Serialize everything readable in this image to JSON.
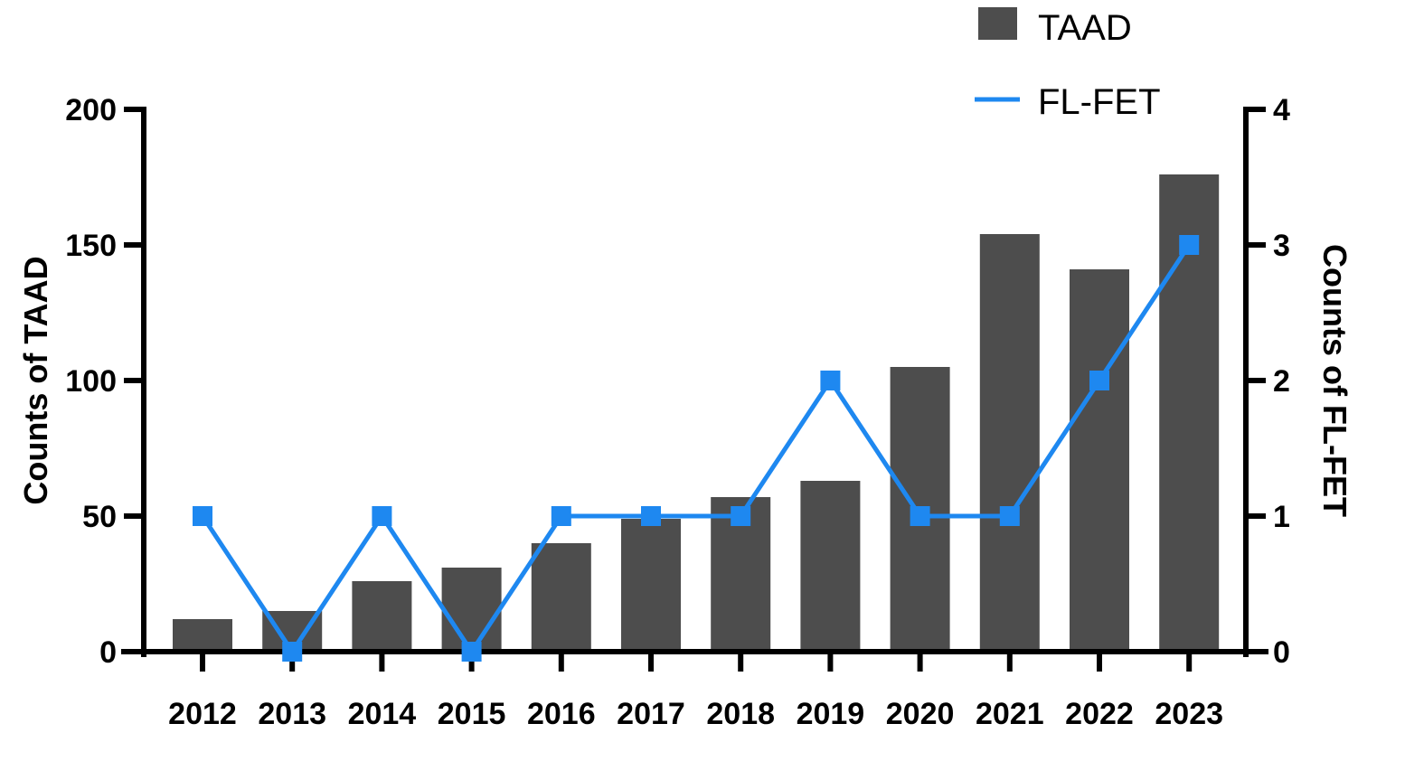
{
  "chart_data": {
    "type": "bar",
    "categories": [
      "2012",
      "2013",
      "2014",
      "2015",
      "2016",
      "2017",
      "2018",
      "2019",
      "2020",
      "2021",
      "2022",
      "2023"
    ],
    "series": [
      {
        "name": "TAAD",
        "type": "bar",
        "axis": "left",
        "color": "#4d4d4d",
        "values": [
          12,
          15,
          26,
          31,
          40,
          49,
          57,
          63,
          105,
          154,
          141,
          176
        ]
      },
      {
        "name": "FL-FET",
        "type": "line",
        "axis": "right",
        "color": "#1e88f0",
        "marker": "square",
        "values": [
          1,
          0,
          1,
          0,
          1,
          1,
          1,
          2,
          1,
          1,
          2,
          3
        ]
      }
    ],
    "ylabel": "Counts of TAAD",
    "ylabel_right": "Counts of FL-FET",
    "ylim": [
      0,
      200
    ],
    "ylim_right": [
      0,
      4
    ],
    "yticks": [
      0,
      50,
      100,
      150,
      200
    ],
    "yticks_right": [
      0,
      1,
      2,
      3,
      4
    ],
    "grid": false,
    "legend_position": "top-right"
  }
}
